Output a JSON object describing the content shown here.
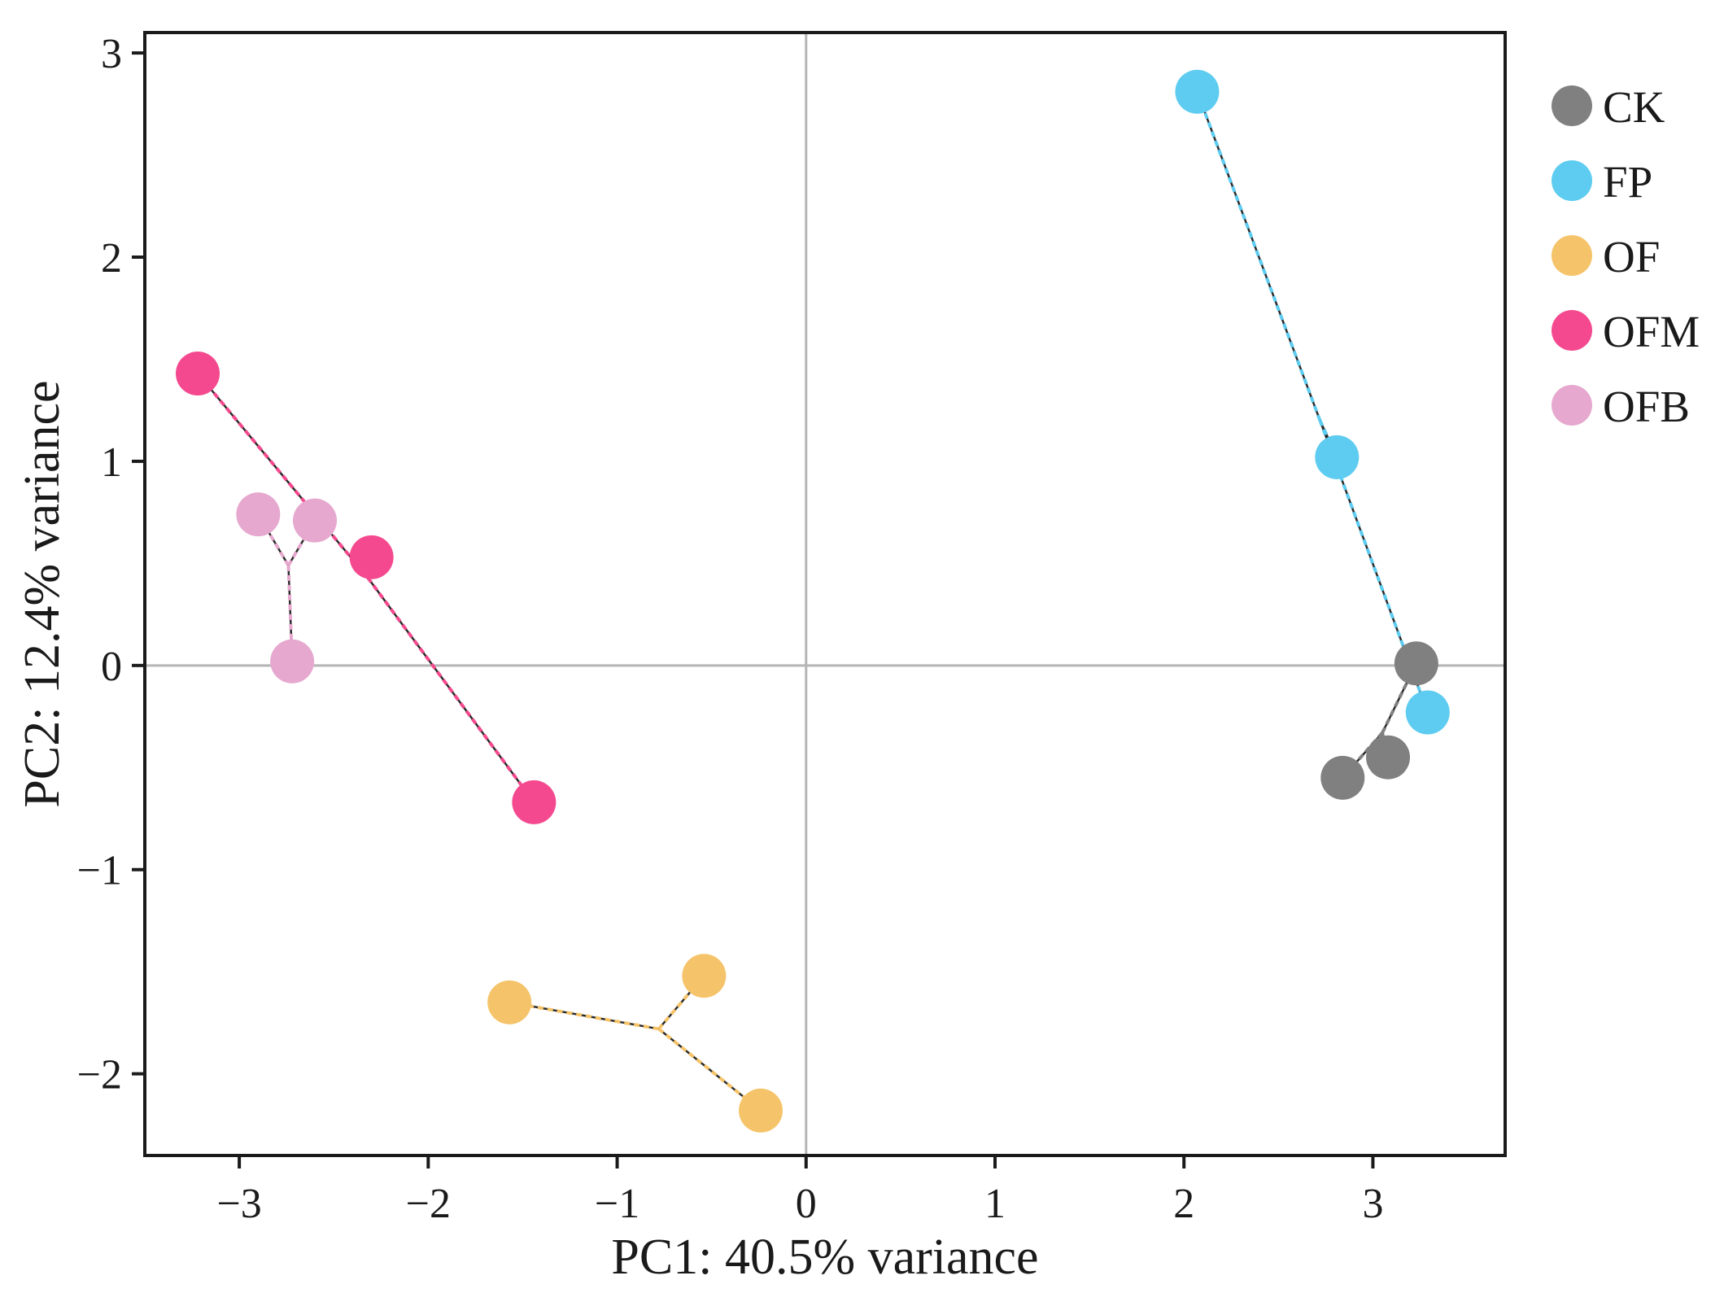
{
  "chart_data": {
    "type": "scatter",
    "xlabel": "PC1: 40.5% variance",
    "ylabel": "PC2: 12.4% variance",
    "xlim": [
      -3.5,
      3.7
    ],
    "ylim": [
      -2.4,
      3.1
    ],
    "xticks": [
      -3,
      -2,
      -1,
      0,
      1,
      2,
      3
    ],
    "yticks": [
      -2,
      -1,
      0,
      1,
      2,
      3
    ],
    "xtick_labels": [
      "−3",
      "−2",
      "−1",
      "0",
      "1",
      "2",
      "3"
    ],
    "ytick_labels": [
      "−2",
      "−1",
      "0",
      "1",
      "2",
      "3"
    ],
    "reference_lines": {
      "x": 0,
      "y": 0
    },
    "legend_position": "right",
    "series": [
      {
        "name": "CK",
        "color": "#808080",
        "points": [
          [
            3.23,
            0.01
          ],
          [
            3.08,
            -0.45
          ],
          [
            2.84,
            -0.55
          ]
        ],
        "centroid": [
          3.05,
          -0.33
        ]
      },
      {
        "name": "FP",
        "color": "#5DCCF0",
        "points": [
          [
            2.07,
            2.81
          ],
          [
            2.81,
            1.02
          ],
          [
            3.29,
            -0.23
          ]
        ],
        "centroid": [
          2.72,
          1.2
        ]
      },
      {
        "name": "OF",
        "color": "#F5C46A",
        "points": [
          [
            -1.57,
            -1.65
          ],
          [
            -0.54,
            -1.52
          ],
          [
            -0.24,
            -2.18
          ]
        ],
        "centroid": [
          -0.78,
          -1.78
        ]
      },
      {
        "name": "OFM",
        "color": "#F4498E",
        "points": [
          [
            -3.22,
            1.43
          ],
          [
            -2.3,
            0.53
          ],
          [
            -1.44,
            -0.67
          ]
        ],
        "centroid": [
          -2.32,
          0.43
        ]
      },
      {
        "name": "OFB",
        "color": "#E6A8CF",
        "points": [
          [
            -2.9,
            0.74
          ],
          [
            -2.6,
            0.71
          ],
          [
            -2.72,
            0.02
          ]
        ],
        "centroid": [
          -2.74,
          0.49
        ]
      }
    ]
  }
}
